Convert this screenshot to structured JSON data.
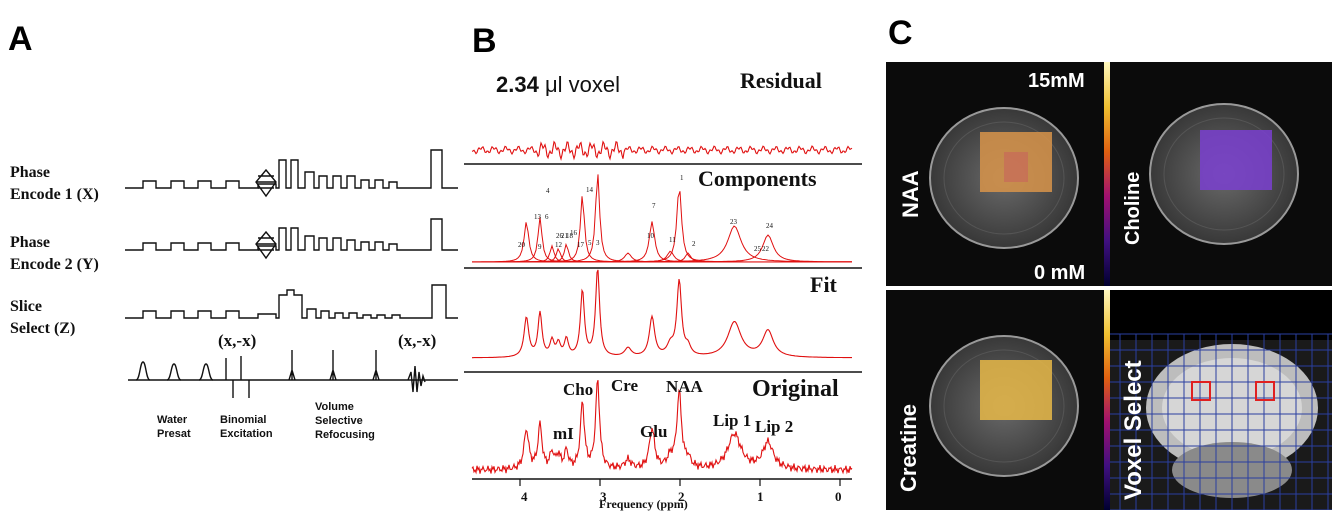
{
  "panels": {
    "a": "A",
    "b": "B",
    "c": "C"
  },
  "panel_a": {
    "channels": [
      {
        "line1": "Phase",
        "line2": "Encode 1 (X)"
      },
      {
        "line1": "Phase",
        "line2": "Encode 2 (Y)"
      },
      {
        "line1": "Slice",
        "line2": "Select (Z)"
      }
    ],
    "phase_labels": [
      "(x,-x)",
      "(x,-x)"
    ],
    "bottom_labels": [
      {
        "line1": "Water",
        "line2": "Presat",
        "line3": ""
      },
      {
        "line1": "Binomial",
        "line2": "Excitation",
        "line3": ""
      },
      {
        "line1": "Volume",
        "line2": "Selective",
        "line3": "Refocusing"
      }
    ]
  },
  "panel_b": {
    "voxel_value": "2.34",
    "voxel_unit": "μl voxel",
    "section_titles": [
      "Residual",
      "Components",
      "Fit",
      "Original"
    ],
    "component_numbers": [
      "1",
      "2",
      "3",
      "4",
      "5",
      "6",
      "7",
      "9",
      "10",
      "11",
      "12",
      "13",
      "14",
      "16",
      "17",
      "18",
      "20",
      "21",
      "22",
      "23",
      "24",
      "25",
      "26"
    ],
    "metabolite_labels": [
      "Cho",
      "Cre",
      "NAA",
      "mI",
      "Glu",
      "Lip 1",
      "Lip 2"
    ],
    "x_axis": {
      "label": "Frequency (ppm)",
      "ticks": [
        "4",
        "3",
        "2",
        "1",
        "0"
      ]
    }
  },
  "panel_c": {
    "maps": [
      "NAA",
      "Choline",
      "Creatine",
      "Voxel Select"
    ],
    "scale_max": "15mM",
    "scale_min": "0 mM",
    "colors": {
      "naa": "#e0a040",
      "choline": "#7a3fd0",
      "creatine": "#e8b848",
      "voxel_box": "#e02020",
      "grid": "#2a3fa0"
    }
  }
}
